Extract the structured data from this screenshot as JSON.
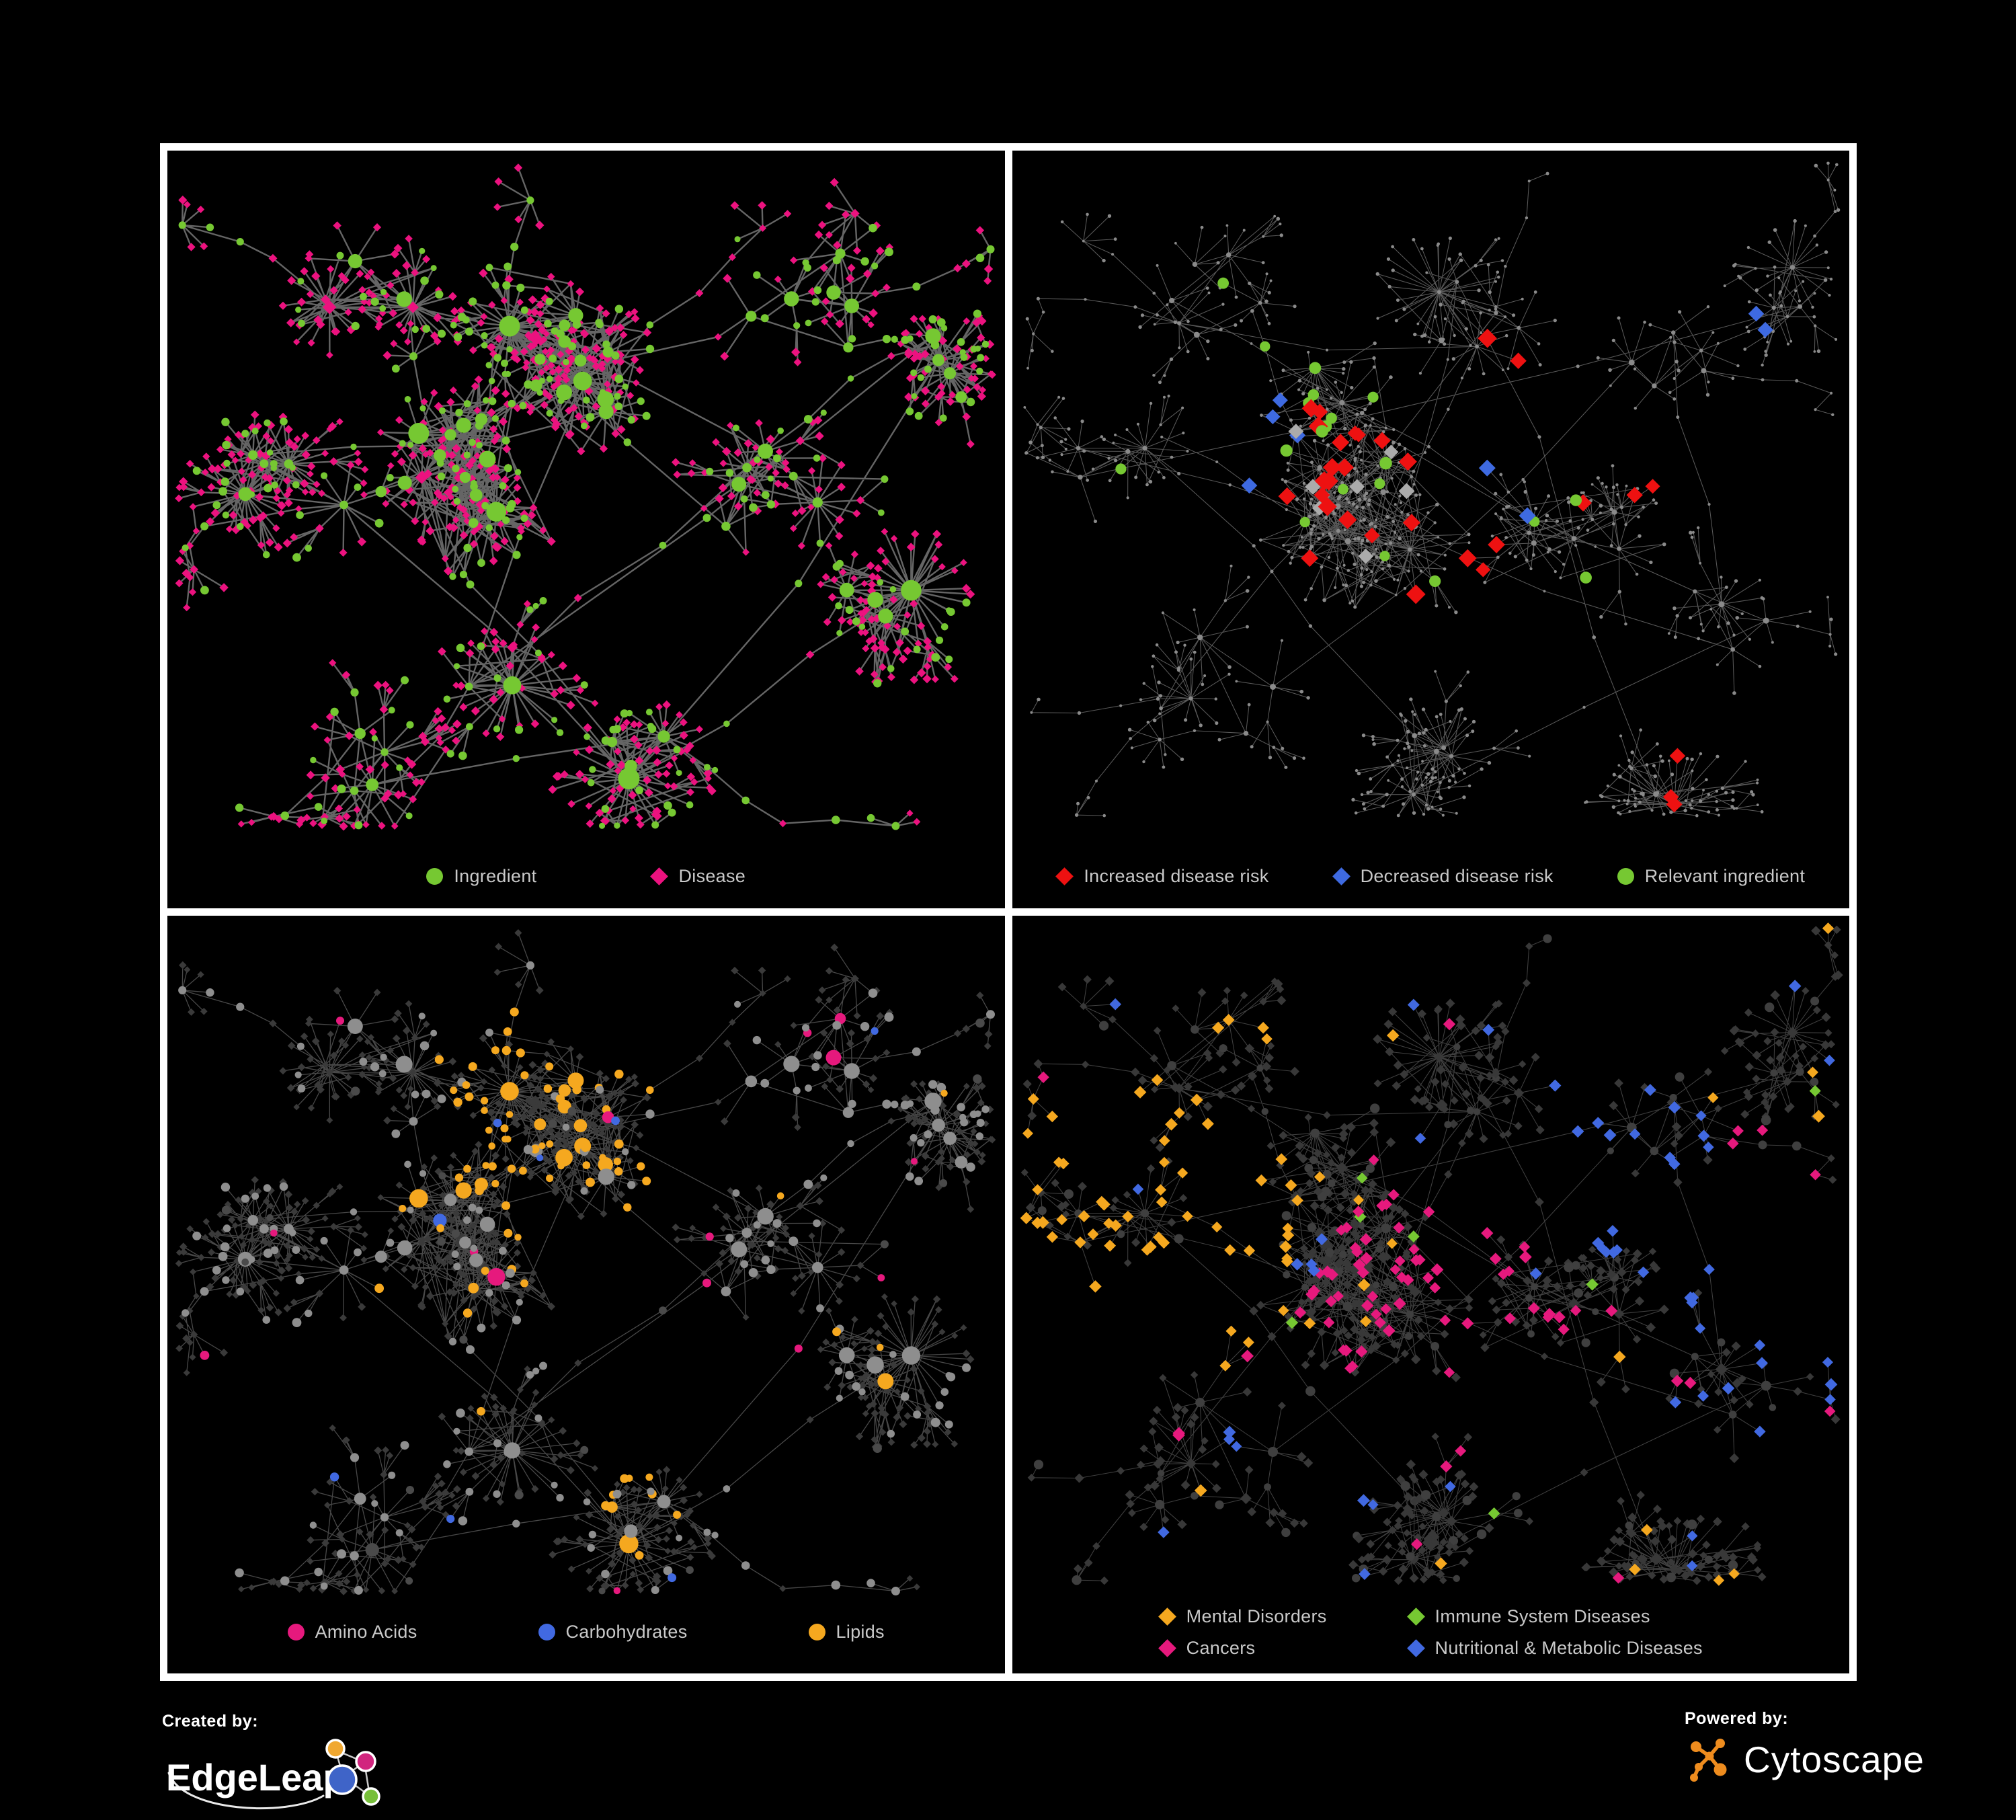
{
  "figure": {
    "background": "#000000",
    "frame_color": "#FFFFFF",
    "legend_text_color": "#C9C9C9"
  },
  "panels": [
    {
      "name": "ingredient-disease-network",
      "type": "network",
      "legend": [
        {
          "label": "Ingredient",
          "shape": "circle",
          "color": "#76C832"
        },
        {
          "label": "Disease",
          "shape": "diamond",
          "color": "#EC127F"
        }
      ],
      "node_colors": {
        "ingredient": "#76C832",
        "disease": "#EC127F"
      },
      "edge_color": "#6A6A6A"
    },
    {
      "name": "disease-risk-network",
      "type": "network",
      "legend": [
        {
          "label": "Increased disease risk",
          "shape": "diamond",
          "color": "#EE1111"
        },
        {
          "label": "Decreased disease risk",
          "shape": "diamond",
          "color": "#3E6AE1"
        },
        {
          "label": "Relevant ingredient",
          "shape": "circle",
          "color": "#76C832"
        }
      ],
      "node_colors": {
        "increased": "#EE1111",
        "decreased": "#3E6AE1",
        "neutral": "#ABABAB",
        "relevant": "#76C832",
        "base": "#8A8A8A"
      },
      "edge_color": "#6F6F6F"
    },
    {
      "name": "nutrient-class-network",
      "type": "network",
      "legend": [
        {
          "label": "Amino Acids",
          "shape": "circle",
          "color": "#E6197D"
        },
        {
          "label": "Carbohydrates",
          "shape": "circle",
          "color": "#4169E1"
        },
        {
          "label": "Lipids",
          "shape": "circle",
          "color": "#F5A81F"
        }
      ],
      "node_colors": {
        "amino": "#E6197D",
        "carbs": "#4169E1",
        "lipids": "#F5A81F",
        "other": "#8E8E8E",
        "dark": "#4A4A4A",
        "disease_dimmed": "#3A3A3A"
      },
      "edge_color": "#8F8F8F"
    },
    {
      "name": "disease-category-network",
      "type": "network",
      "legend": [
        {
          "label": "Mental Disorders",
          "shape": "diamond",
          "color": "#F5A81F"
        },
        {
          "label": "Immune System Diseases",
          "shape": "diamond",
          "color": "#76C832"
        },
        {
          "label": "Cancers",
          "shape": "diamond",
          "color": "#E6197D"
        },
        {
          "label": "Nutritional & Metabolic Diseases",
          "shape": "diamond",
          "color": "#4169E1"
        }
      ],
      "node_colors": {
        "mental": "#F5A81F",
        "immune": "#76C832",
        "cancer": "#E6197D",
        "nutri": "#4169E1",
        "base_disease": "#383838",
        "base_ingredient": "#3F3F3F"
      },
      "edge_color": "#8F8F8F"
    }
  ],
  "footer": {
    "created_by": "Created by:",
    "edgeleap": "EdgeLeap",
    "powered_by": "Powered by:",
    "cytoscape": "Cytoscape",
    "cytoscape_color": "#EE8C1E",
    "edgeleap_palette": {
      "orange": "#F0A830",
      "magenta": "#D1257E",
      "blue": "#3F64C8",
      "green": "#77BF3A"
    }
  }
}
